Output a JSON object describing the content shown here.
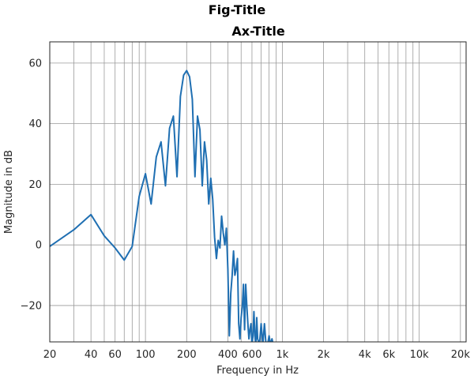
{
  "figure": {
    "title": "Fig-Title"
  },
  "chart_data": {
    "type": "line",
    "title": "Ax-Title",
    "xlabel": "Frequency in Hz",
    "ylabel": "Magnitude in dB",
    "xscale": "log",
    "xlim": [
      20,
      22000
    ],
    "ylim": [
      -32,
      67
    ],
    "grid": true,
    "line_color": "#1f6fb2",
    "x_ticks": [
      {
        "value": 20,
        "label": "20"
      },
      {
        "value": 40,
        "label": "40"
      },
      {
        "value": 60,
        "label": "60"
      },
      {
        "value": 100,
        "label": "100"
      },
      {
        "value": 200,
        "label": "200"
      },
      {
        "value": 400,
        "label": "400"
      },
      {
        "value": 600,
        "label": "600"
      },
      {
        "value": 1000,
        "label": "1k"
      },
      {
        "value": 2000,
        "label": "2k"
      },
      {
        "value": 4000,
        "label": "4k"
      },
      {
        "value": 6000,
        "label": "6k"
      },
      {
        "value": 10000,
        "label": "10k"
      },
      {
        "value": 20000,
        "label": "20k"
      }
    ],
    "y_ticks": [
      {
        "value": -20,
        "label": "−20"
      },
      {
        "value": 0,
        "label": "0"
      },
      {
        "value": 20,
        "label": "20"
      },
      {
        "value": 40,
        "label": "40"
      },
      {
        "value": 60,
        "label": "60"
      }
    ],
    "x_minor_grid": [
      30,
      50,
      70,
      80,
      90,
      300,
      500,
      700,
      800,
      900,
      3000,
      5000,
      7000,
      8000,
      9000
    ],
    "series": [
      {
        "x": [
          20,
          30,
          40,
          50,
          60,
          70,
          80,
          85,
          90,
          100,
          110,
          120,
          130,
          140,
          150,
          160,
          170,
          180,
          190,
          200,
          210,
          220,
          230,
          240,
          250,
          260,
          270,
          280,
          290,
          300,
          310,
          320,
          330,
          340,
          350,
          360,
          370,
          380,
          390,
          400,
          410,
          420,
          430,
          440,
          450,
          460,
          470,
          480,
          490,
          500,
          510,
          520,
          530,
          540,
          550,
          560,
          570,
          580,
          590,
          600,
          610,
          620,
          630,
          640,
          650,
          660,
          680,
          700,
          720,
          740,
          760,
          780,
          800,
          820,
          840,
          860,
          880,
          900,
          920,
          940,
          960,
          980,
          1000
        ],
        "y": [
          -0.5,
          5,
          10,
          3,
          -1,
          -5,
          -0.5,
          8,
          16,
          23.5,
          13.5,
          29,
          34,
          19.5,
          38.5,
          42.5,
          22.5,
          49,
          56,
          57.5,
          55.5,
          48,
          22.5,
          42.5,
          38,
          19.5,
          34,
          28,
          13.5,
          22,
          15,
          2.5,
          -4.5,
          1.5,
          -1,
          9.5,
          4,
          0,
          5.5,
          -8,
          -30,
          -16,
          -10,
          -2,
          -10,
          -8,
          -4.5,
          -26,
          -31,
          -24,
          -20.5,
          -13,
          -28,
          -13,
          -20,
          -26,
          -31,
          -28,
          -26,
          -33,
          -30,
          -22,
          -30,
          -33,
          -24,
          -31,
          -33,
          -26,
          -33,
          -26,
          -33,
          -33,
          -30,
          -33,
          -31,
          -33,
          -33,
          -33,
          -33,
          -33,
          -33,
          -33,
          -33
        ]
      }
    ]
  }
}
